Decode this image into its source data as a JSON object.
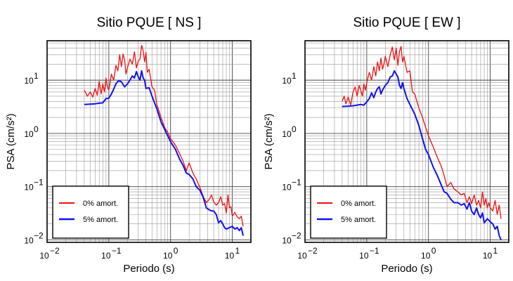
{
  "chart_data": [
    {
      "type": "line",
      "title": "Sitio PQUE [ NS ]",
      "xlabel": "Periodo (s)",
      "ylabel": "PSA (cm/s²)",
      "xscale": "log",
      "yscale": "log",
      "xlim": [
        0.01,
        20
      ],
      "ylim": [
        0.009,
        55
      ],
      "grid": true,
      "legend_position": "bottom-left",
      "xtick_labels": [
        "10",
        "10",
        "10",
        "10"
      ],
      "xtick_exponents": [
        "−2",
        "−1",
        "0",
        "1"
      ],
      "ytick_labels": [
        "10",
        "10",
        "10",
        "10"
      ],
      "ytick_exponents": [
        "−2",
        "−1",
        "0",
        "1"
      ],
      "series": [
        {
          "name": "0% amort.",
          "color": "#ee1111",
          "x": [
            0.04,
            0.045,
            0.05,
            0.055,
            0.06,
            0.065,
            0.07,
            0.075,
            0.08,
            0.085,
            0.09,
            0.095,
            0.1,
            0.11,
            0.12,
            0.13,
            0.14,
            0.15,
            0.16,
            0.17,
            0.18,
            0.19,
            0.2,
            0.22,
            0.24,
            0.26,
            0.28,
            0.3,
            0.32,
            0.34,
            0.36,
            0.38,
            0.4,
            0.42,
            0.45,
            0.5,
            0.55,
            0.6,
            0.7,
            0.8,
            0.9,
            1.0,
            1.2,
            1.4,
            1.6,
            1.8,
            2.0,
            2.3,
            2.6,
            3.0,
            3.4,
            3.8,
            4.2,
            4.6,
            5.0,
            5.5,
            6.0,
            6.5,
            7.0,
            7.5,
            8.0,
            8.5,
            9.0,
            9.5,
            10.0,
            11.0,
            12.0,
            13.0,
            14.0,
            15.0
          ],
          "y": [
            6.5,
            5.0,
            6.0,
            4.8,
            7.0,
            5.2,
            9.5,
            5.5,
            8.5,
            6.0,
            11.0,
            7.5,
            6.5,
            13.0,
            10.0,
            19.0,
            15.0,
            30.0,
            18.0,
            31.0,
            24.0,
            13.0,
            17.0,
            25.0,
            20.0,
            34.0,
            17.0,
            23.0,
            25.0,
            45.0,
            36.0,
            22.0,
            33.0,
            14.0,
            16.0,
            7.5,
            6.5,
            3.5,
            2.0,
            1.3,
            1.05,
            0.8,
            0.6,
            0.42,
            0.3,
            0.2,
            0.28,
            0.18,
            0.14,
            0.095,
            0.065,
            0.05,
            0.057,
            0.07,
            0.052,
            0.045,
            0.05,
            0.065,
            0.045,
            0.048,
            0.032,
            0.07,
            0.04,
            0.042,
            0.028,
            0.033,
            0.027,
            0.025,
            0.028,
            0.018
          ]
        },
        {
          "name": "5% amort.",
          "color": "#1111ee",
          "x": [
            0.04,
            0.05,
            0.06,
            0.07,
            0.08,
            0.09,
            0.1,
            0.11,
            0.12,
            0.13,
            0.14,
            0.15,
            0.16,
            0.18,
            0.2,
            0.22,
            0.24,
            0.26,
            0.28,
            0.3,
            0.32,
            0.34,
            0.36,
            0.38,
            0.4,
            0.45,
            0.5,
            0.6,
            0.7,
            0.8,
            0.9,
            1.0,
            1.2,
            1.4,
            1.6,
            1.8,
            2.0,
            2.3,
            2.6,
            3.0,
            3.4,
            3.8,
            4.2,
            4.6,
            5.0,
            5.5,
            6.0,
            6.5,
            7.0,
            7.5,
            8.0,
            9.0,
            10.0,
            11.0,
            12.0,
            13.0,
            14.0,
            15.0
          ],
          "y": [
            3.5,
            3.55,
            3.6,
            3.7,
            3.75,
            4.5,
            4.6,
            5.5,
            6.8,
            8.5,
            9.5,
            9.7,
            9.3,
            7.5,
            8.5,
            10.0,
            12.0,
            11.0,
            14.5,
            11.5,
            10.0,
            15.0,
            11.0,
            10.0,
            7.0,
            7.2,
            5.0,
            2.9,
            1.65,
            1.2,
            0.9,
            0.7,
            0.5,
            0.33,
            0.25,
            0.18,
            0.17,
            0.14,
            0.1,
            0.085,
            0.062,
            0.04,
            0.037,
            0.035,
            0.035,
            0.03,
            0.021,
            0.023,
            0.02,
            0.017,
            0.016,
            0.017,
            0.018,
            0.016,
            0.017,
            0.015,
            0.017,
            0.012
          ]
        }
      ]
    },
    {
      "type": "line",
      "title": "Sitio PQUE [ EW ]",
      "xlabel": "Periodo (s)",
      "ylabel": "PSA (cm/s²)",
      "xscale": "log",
      "yscale": "log",
      "xlim": [
        0.01,
        20
      ],
      "ylim": [
        0.009,
        55
      ],
      "grid": true,
      "legend_position": "bottom-left",
      "xtick_labels": [
        "10",
        "10",
        "10",
        "10"
      ],
      "xtick_exponents": [
        "−2",
        "−1",
        "0",
        "1"
      ],
      "ytick_labels": [
        "10",
        "10",
        "10",
        "10"
      ],
      "ytick_exponents": [
        "−2",
        "−1",
        "0",
        "1"
      ],
      "series": [
        {
          "name": "0% amort.",
          "color": "#ee1111",
          "x": [
            0.04,
            0.043,
            0.046,
            0.05,
            0.055,
            0.06,
            0.065,
            0.07,
            0.075,
            0.08,
            0.085,
            0.09,
            0.095,
            0.1,
            0.11,
            0.12,
            0.13,
            0.14,
            0.15,
            0.16,
            0.17,
            0.18,
            0.19,
            0.2,
            0.22,
            0.24,
            0.26,
            0.28,
            0.3,
            0.32,
            0.34,
            0.36,
            0.38,
            0.4,
            0.45,
            0.5,
            0.55,
            0.6,
            0.7,
            0.8,
            0.9,
            1.0,
            1.2,
            1.4,
            1.6,
            1.8,
            2.0,
            2.3,
            2.6,
            3.0,
            3.4,
            3.8,
            4.2,
            4.6,
            5.0,
            5.5,
            6.0,
            6.5,
            7.0,
            7.5,
            8.0,
            8.5,
            9.0,
            9.5,
            10.0,
            11.0,
            12.0,
            13.0,
            14.0,
            15.0
          ],
          "y": [
            4.0,
            5.0,
            3.6,
            4.8,
            3.4,
            6.0,
            7.5,
            5.0,
            8.0,
            6.5,
            5.0,
            8.5,
            6.5,
            9.0,
            14.0,
            10.0,
            18.0,
            12.0,
            22.0,
            15.0,
            26.0,
            16.0,
            20.0,
            28.0,
            18.0,
            30.0,
            42.0,
            24.0,
            40.0,
            19.0,
            35.0,
            43.0,
            22.0,
            28.0,
            14.0,
            15.0,
            6.0,
            5.5,
            3.0,
            2.0,
            1.3,
            0.9,
            0.55,
            0.35,
            0.25,
            0.16,
            0.1,
            0.12,
            0.09,
            0.08,
            0.07,
            0.075,
            0.05,
            0.065,
            0.048,
            0.07,
            0.045,
            0.055,
            0.04,
            0.08,
            0.045,
            0.06,
            0.04,
            0.05,
            0.04,
            0.035,
            0.055,
            0.03,
            0.045,
            0.025
          ]
        },
        {
          "name": "5% amort.",
          "color": "#1111ee",
          "x": [
            0.04,
            0.05,
            0.06,
            0.07,
            0.08,
            0.09,
            0.1,
            0.11,
            0.12,
            0.13,
            0.14,
            0.15,
            0.16,
            0.17,
            0.18,
            0.2,
            0.22,
            0.24,
            0.26,
            0.28,
            0.3,
            0.32,
            0.34,
            0.36,
            0.38,
            0.4,
            0.45,
            0.5,
            0.6,
            0.7,
            0.8,
            0.9,
            1.0,
            1.2,
            1.4,
            1.6,
            1.8,
            2.0,
            2.3,
            2.6,
            3.0,
            3.4,
            3.8,
            4.2,
            4.6,
            5.0,
            5.5,
            6.0,
            6.5,
            7.0,
            7.5,
            8.0,
            9.0,
            10.0,
            11.0,
            12.0,
            13.0,
            14.0,
            15.0
          ],
          "y": [
            3.2,
            3.25,
            3.3,
            3.4,
            3.5,
            3.4,
            3.9,
            4.5,
            5.8,
            4.7,
            6.0,
            7.0,
            7.5,
            5.5,
            6.5,
            8.0,
            9.0,
            11.5,
            12.0,
            15.0,
            13.0,
            11.5,
            8.0,
            7.0,
            9.0,
            7.0,
            4.5,
            3.5,
            2.3,
            1.4,
            0.8,
            0.5,
            0.4,
            0.23,
            0.16,
            0.11,
            0.08,
            0.075,
            0.058,
            0.05,
            0.05,
            0.045,
            0.048,
            0.038,
            0.05,
            0.035,
            0.03,
            0.04,
            0.03,
            0.026,
            0.032,
            0.021,
            0.025,
            0.022,
            0.02,
            0.016,
            0.018,
            0.012,
            0.01
          ]
        }
      ]
    }
  ]
}
